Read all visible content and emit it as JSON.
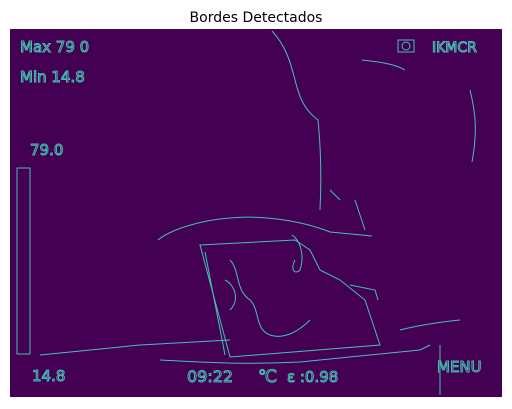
{
  "title": "Bordes Detectados",
  "overlay": {
    "max": "Max 79 0",
    "min": "Min 14.8",
    "brand": "IKMCR",
    "scale_high": "79.0",
    "scale_low": "14.8",
    "time": "09:22",
    "unit": "℃",
    "emissivity": "ε :0.98",
    "menu": "MENU"
  }
}
